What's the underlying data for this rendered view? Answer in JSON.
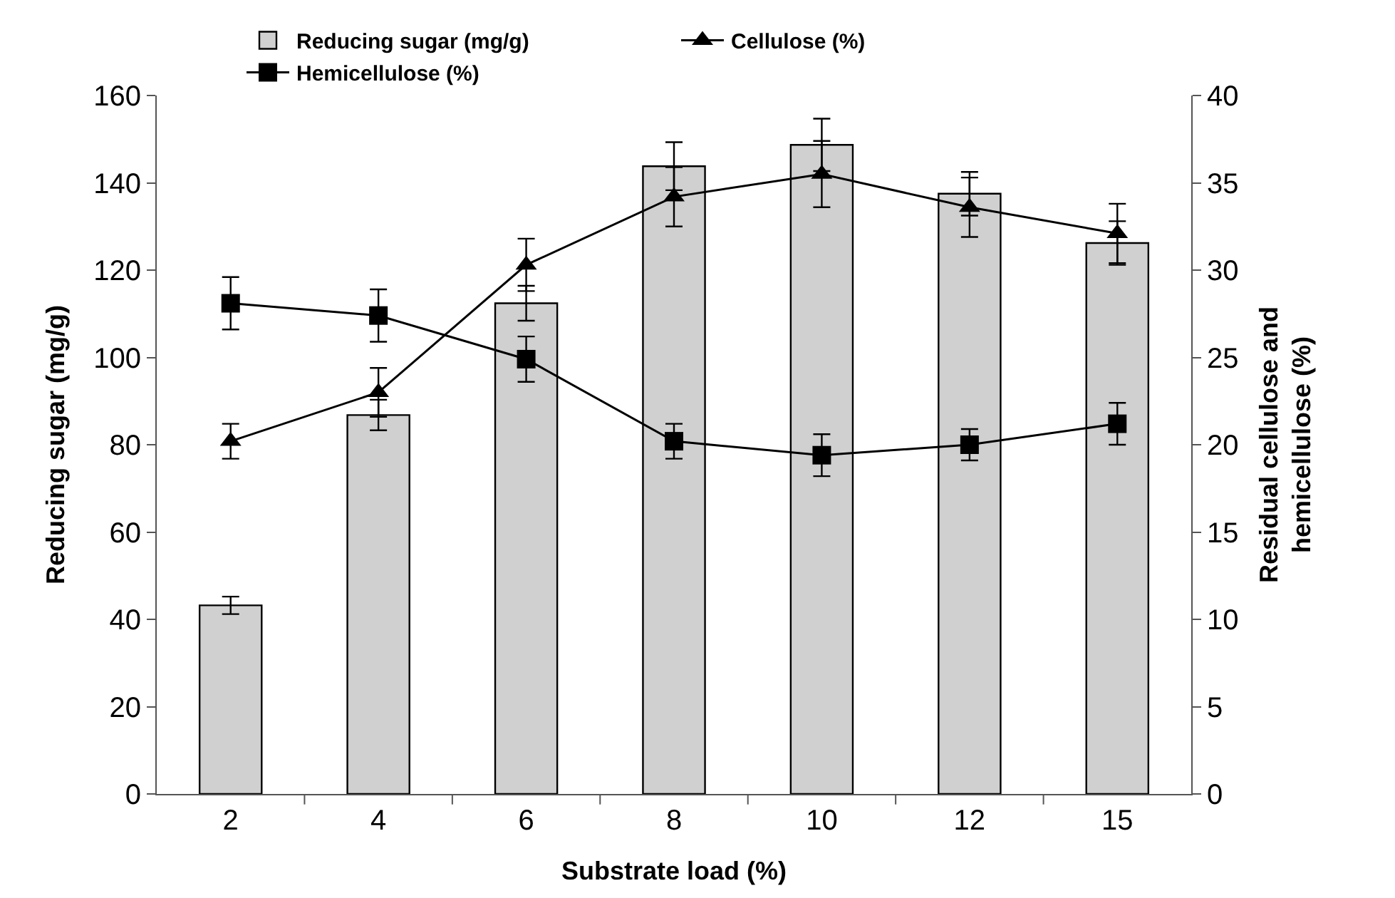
{
  "chart_data": {
    "type": "bar",
    "xlabel": "Substrate load (%)",
    "ylabel": "Reducing sugar (mg/g)",
    "y2label": "Residual cellulose and hemicellulose (%)",
    "categories": [
      "2",
      "4",
      "6",
      "8",
      "10",
      "12",
      "15"
    ],
    "series": [
      {
        "name": "Reducing sugar (mg/g)",
        "color": "#d0d0d0",
        "values": [
          43.2,
          86.8,
          112.4,
          143.8,
          148.7,
          137.5,
          126.2
        ],
        "errors": [
          2,
          3.5,
          4,
          5.5,
          6,
          5,
          5
        ]
      },
      {
        "name": "Cellulose (%)",
        "type": "line",
        "axis": "y2",
        "color": "#000000",
        "marker": "triangle",
        "values": [
          20.2,
          23.0,
          30.3,
          34.2,
          35.5,
          33.6,
          32.1
        ],
        "errors": [
          1,
          1.4,
          1.5,
          1.7,
          1.9,
          1.7,
          1.7
        ]
      },
      {
        "name": "Hemicellulose (%)",
        "type": "line",
        "axis": "y2",
        "color": "#000000",
        "marker": "square",
        "values": [
          28.1,
          27.4,
          24.9,
          20.2,
          19.4,
          20.0,
          21.2
        ],
        "errors": [
          1.5,
          1.5,
          1.3,
          1,
          1.2,
          0.9,
          1.2
        ]
      }
    ],
    "ylim": [
      0,
      160
    ],
    "yticks": [
      0,
      20,
      40,
      60,
      80,
      100,
      120,
      140,
      160
    ],
    "y2lim": [
      0,
      40
    ],
    "y2ticks": [
      0,
      5,
      10,
      15,
      20,
      25,
      30,
      35,
      40
    ],
    "legend": "top",
    "line_style": "solid"
  }
}
